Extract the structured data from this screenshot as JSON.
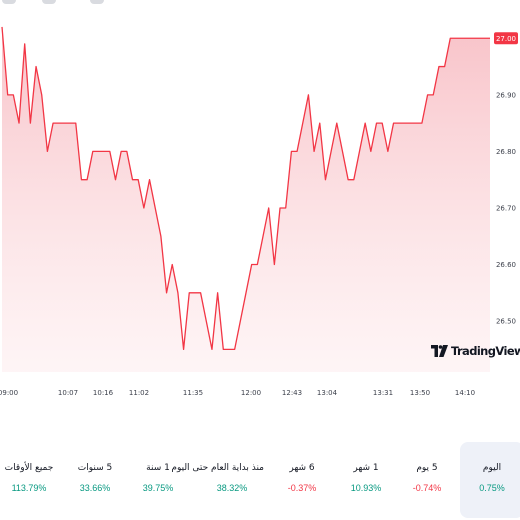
{
  "chart_data": {
    "type": "area",
    "x_tick_labels": [
      "09:00",
      "10:07",
      "10:16",
      "11:02",
      "11:35",
      "12:00",
      "12:43",
      "13:04",
      "13:31",
      "13:50",
      "14:10"
    ],
    "y_tick_labels": [
      "26.50",
      "26.60",
      "26.70",
      "26.80",
      "26.90"
    ],
    "ylim": [
      26.41,
      27.05
    ],
    "last_price": 27.0,
    "last_price_label": "27.00",
    "values": [
      27.02,
      26.9,
      26.9,
      26.85,
      26.99,
      26.85,
      26.95,
      26.9,
      26.8,
      26.85,
      26.85,
      26.85,
      26.85,
      26.85,
      26.75,
      26.75,
      26.8,
      26.8,
      26.8,
      26.8,
      26.75,
      26.8,
      26.8,
      26.75,
      26.75,
      26.7,
      26.75,
      26.7,
      26.65,
      26.55,
      26.6,
      26.55,
      26.45,
      26.55,
      26.55,
      26.55,
      26.5,
      26.45,
      26.55,
      26.45,
      26.45,
      26.45,
      26.5,
      26.55,
      26.6,
      26.6,
      26.65,
      26.7,
      26.6,
      26.7,
      26.7,
      26.8,
      26.8,
      26.85,
      26.9,
      26.8,
      26.85,
      26.75,
      26.8,
      26.85,
      26.8,
      26.75,
      26.75,
      26.8,
      26.85,
      26.8,
      26.85,
      26.85,
      26.8,
      26.85,
      26.85,
      26.85,
      26.85,
      26.85,
      26.85,
      26.9,
      26.9,
      26.95,
      26.95,
      27.0,
      27.0,
      27.0,
      27.0,
      27.0,
      27.0,
      27.0,
      27.0
    ],
    "line_color": "#f23645",
    "fill_color": "#fcdcdf"
  },
  "watermark": {
    "text": "TradingView",
    "icon": "tradingview-logo-icon"
  },
  "periods": [
    {
      "label": "اليوم",
      "value": "0.75%",
      "direction": "up",
      "active": true
    },
    {
      "label": "5 يوم",
      "value": "0.74%-",
      "direction": "down",
      "active": false
    },
    {
      "label": "1 شهر",
      "value": "10.93%",
      "direction": "up",
      "active": false
    },
    {
      "label": "6 شهر",
      "value": "0.37%-",
      "direction": "down",
      "active": false
    },
    {
      "label": "منذ بداية العام حتى اليوم",
      "value": "38.32%",
      "direction": "up",
      "active": false
    },
    {
      "label": "1 سنة",
      "value": "39.75%",
      "direction": "up",
      "active": false
    },
    {
      "label": "5 سنوات",
      "value": "33.66%",
      "direction": "up",
      "active": false
    },
    {
      "label": "جميع الأوقات",
      "value": "113.79%",
      "direction": "up",
      "active": false
    }
  ],
  "colors": {
    "up": "#089981",
    "down": "#f23645",
    "active_period_bg": "#eef1f8"
  }
}
